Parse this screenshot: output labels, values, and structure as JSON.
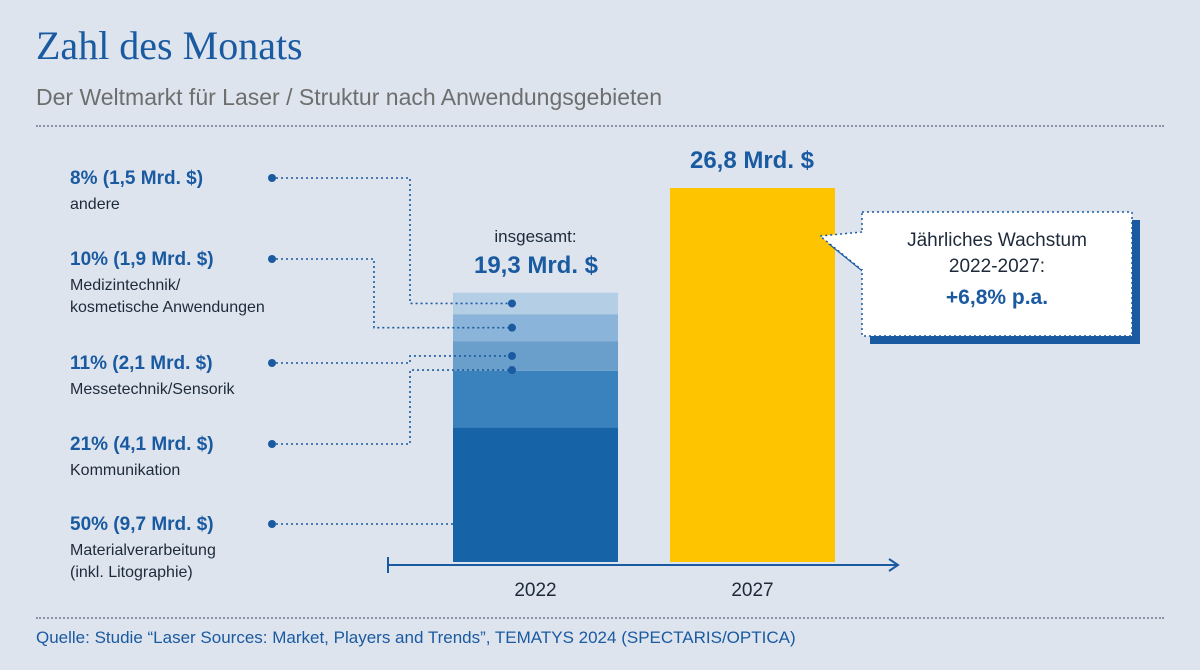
{
  "header": {
    "title": "Zahl des Monats",
    "subtitle": "Der Weltmarkt für Laser / Struktur nach Anwendungsgebieten"
  },
  "footer": {
    "source": "Quelle: Studie “Laser Sources: Market, Players and Trends”, TEMATYS 2024 (SPECTARIS/OPTICA)"
  },
  "colors": {
    "primary": "#1a5aa0",
    "yellow": "#ffc400",
    "segments": [
      "#1763a8",
      "#3a82bd",
      "#6a9fcc",
      "#8ab4d9",
      "#b4cee6"
    ]
  },
  "chart_data": {
    "type": "bar",
    "title": "Zahl des Monats",
    "subtitle": "Der Weltmarkt für Laser / Struktur nach Anwendungsgebieten",
    "categories": [
      "2022",
      "2027"
    ],
    "unit": "Mrd. $",
    "ylim": [
      0,
      26.8
    ],
    "bar_2022": {
      "caption_small": "insgesamt:",
      "total_label": "19,3 Mrd. $",
      "total": 19.3,
      "segments": [
        {
          "name": "Materialverarbeitung (inkl. Litographie)",
          "value_label": "50% (9,7 Mrd. $)",
          "label_lines": [
            "Materialverarbeitung",
            "(inkl. Litographie)"
          ],
          "percent": 50,
          "value": 9.7
        },
        {
          "name": "Kommunikation",
          "value_label": "21% (4,1 Mrd. $)",
          "label_lines": [
            "Kommunikation"
          ],
          "percent": 21,
          "value": 4.1
        },
        {
          "name": "Messetechnik/Sensorik",
          "value_label": "11% (2,1 Mrd. $)",
          "label_lines": [
            "Messetechnik/Sensorik"
          ],
          "percent": 11,
          "value": 2.1
        },
        {
          "name": "Medizintechnik/kosmetische Anwendungen",
          "value_label": "10% (1,9 Mrd. $)",
          "label_lines": [
            "Medizintechnik/",
            "kosmetische Anwendungen"
          ],
          "percent": 10,
          "value": 1.9
        },
        {
          "name": "andere",
          "value_label": "8% (1,5 Mrd. $)",
          "label_lines": [
            "andere"
          ],
          "percent": 8,
          "value": 1.5
        }
      ]
    },
    "bar_2027": {
      "total_label": "26,8 Mrd. $",
      "total": 26.8
    },
    "annotation": {
      "line1": "Jährliches Wachstum",
      "line2": "2022-2027:",
      "line3": "+6,8% p.a."
    }
  }
}
